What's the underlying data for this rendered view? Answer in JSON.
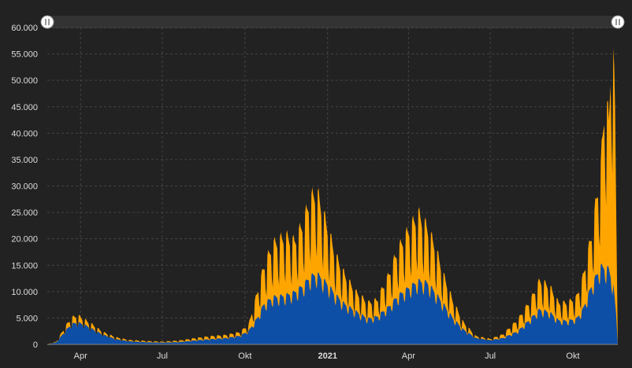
{
  "chart_data": {
    "type": "area",
    "stacked": true,
    "title": "",
    "xlabel": "",
    "ylabel": "",
    "ylim": [
      0,
      60000
    ],
    "y_ticks": [
      "0",
      "5.000",
      "10.000",
      "15.000",
      "20.000",
      "25.000",
      "30.000",
      "35.000",
      "40.000",
      "45.000",
      "50.000",
      "55.000",
      "60.000"
    ],
    "x_ticks": [
      {
        "label": "Apr",
        "date": "2020-04-01"
      },
      {
        "label": "Jul",
        "date": "2020-07-01"
      },
      {
        "label": "Okt",
        "date": "2020-10-01"
      },
      {
        "label": "2021",
        "date": "2021-01-01",
        "bold": true
      },
      {
        "label": "Apr",
        "date": "2021-04-01"
      },
      {
        "label": "Jul",
        "date": "2021-07-01"
      },
      {
        "label": "Okt",
        "date": "2021-10-01"
      }
    ],
    "x_range": [
      "2020-02-24",
      "2021-11-20"
    ],
    "grid": true,
    "legend": "none",
    "navigator_handles": true,
    "colors": {
      "series_bottom": "#0d4ea6",
      "series_top": "#ffa500",
      "background": "#222222",
      "grid": "#444444",
      "navigator": "#333333"
    },
    "series_bottom": [
      [
        "2020-02-24",
        0
      ],
      [
        "2020-03-05",
        400
      ],
      [
        "2020-03-15",
        2500
      ],
      [
        "2020-03-22",
        3800
      ],
      [
        "2020-03-29",
        4100
      ],
      [
        "2020-04-05",
        3700
      ],
      [
        "2020-04-15",
        2800
      ],
      [
        "2020-04-25",
        1900
      ],
      [
        "2020-05-10",
        1000
      ],
      [
        "2020-05-25",
        600
      ],
      [
        "2020-06-15",
        400
      ],
      [
        "2020-07-01",
        350
      ],
      [
        "2020-07-20",
        450
      ],
      [
        "2020-08-10",
        800
      ],
      [
        "2020-08-25",
        1000
      ],
      [
        "2020-09-10",
        1200
      ],
      [
        "2020-09-25",
        1600
      ],
      [
        "2020-10-05",
        2500
      ],
      [
        "2020-10-15",
        5000
      ],
      [
        "2020-10-22",
        7500
      ],
      [
        "2020-11-01",
        8800
      ],
      [
        "2020-11-15",
        9100
      ],
      [
        "2020-11-25",
        9700
      ],
      [
        "2020-12-05",
        11000
      ],
      [
        "2020-12-12",
        12500
      ],
      [
        "2020-12-20",
        13200
      ],
      [
        "2021-01-01",
        11200
      ],
      [
        "2021-01-10",
        9200
      ],
      [
        "2021-01-20",
        7500
      ],
      [
        "2021-02-01",
        6200
      ],
      [
        "2021-02-15",
        4800
      ],
      [
        "2021-02-25",
        5200
      ],
      [
        "2021-03-10",
        7000
      ],
      [
        "2021-03-20",
        9000
      ],
      [
        "2021-04-01",
        10500
      ],
      [
        "2021-04-12",
        11800
      ],
      [
        "2021-04-22",
        11500
      ],
      [
        "2021-05-01",
        9600
      ],
      [
        "2021-05-10",
        7500
      ],
      [
        "2021-05-20",
        5000
      ],
      [
        "2021-06-01",
        2800
      ],
      [
        "2021-06-15",
        1200
      ],
      [
        "2021-07-01",
        800
      ],
      [
        "2021-07-15",
        1200
      ],
      [
        "2021-08-01",
        2500
      ],
      [
        "2021-08-15",
        4800
      ],
      [
        "2021-08-25",
        6500
      ],
      [
        "2021-09-05",
        6000
      ],
      [
        "2021-09-15",
        4500
      ],
      [
        "2021-09-25",
        4400
      ],
      [
        "2021-10-05",
        4800
      ],
      [
        "2021-10-12",
        6500
      ],
      [
        "2021-10-22",
        11000
      ],
      [
        "2021-11-01",
        14500
      ],
      [
        "2021-11-10",
        14000
      ],
      [
        "2021-11-15",
        11000
      ],
      [
        "2021-11-18",
        6000
      ],
      [
        "2021-11-20",
        0
      ]
    ],
    "series_total": [
      [
        "2020-02-24",
        0
      ],
      [
        "2020-03-05",
        500
      ],
      [
        "2020-03-15",
        3200
      ],
      [
        "2020-03-22",
        4800
      ],
      [
        "2020-03-29",
        5200
      ],
      [
        "2020-04-05",
        4500
      ],
      [
        "2020-04-15",
        3500
      ],
      [
        "2020-04-25",
        2300
      ],
      [
        "2020-05-10",
        1300
      ],
      [
        "2020-05-25",
        800
      ],
      [
        "2020-06-15",
        600
      ],
      [
        "2020-07-01",
        500
      ],
      [
        "2020-07-20",
        700
      ],
      [
        "2020-08-10",
        1200
      ],
      [
        "2020-08-25",
        1500
      ],
      [
        "2020-09-10",
        1700
      ],
      [
        "2020-09-25",
        2200
      ],
      [
        "2020-10-05",
        3500
      ],
      [
        "2020-10-15",
        9500
      ],
      [
        "2020-10-22",
        14000
      ],
      [
        "2020-11-01",
        18000
      ],
      [
        "2020-11-15",
        19500
      ],
      [
        "2020-11-25",
        18500
      ],
      [
        "2020-12-05",
        22000
      ],
      [
        "2020-12-12",
        26000
      ],
      [
        "2020-12-20",
        27500
      ],
      [
        "2021-01-01",
        21000
      ],
      [
        "2021-01-10",
        16000
      ],
      [
        "2021-01-20",
        12500
      ],
      [
        "2021-02-01",
        9500
      ],
      [
        "2021-02-15",
        7500
      ],
      [
        "2021-02-25",
        8000
      ],
      [
        "2021-03-10",
        12500
      ],
      [
        "2021-03-20",
        17000
      ],
      [
        "2021-04-01",
        20500
      ],
      [
        "2021-04-12",
        23500
      ],
      [
        "2021-04-22",
        21000
      ],
      [
        "2021-05-01",
        17500
      ],
      [
        "2021-05-10",
        12500
      ],
      [
        "2021-05-20",
        8000
      ],
      [
        "2021-06-01",
        4000
      ],
      [
        "2021-06-15",
        1500
      ],
      [
        "2021-07-01",
        1000
      ],
      [
        "2021-07-15",
        1800
      ],
      [
        "2021-08-01",
        4500
      ],
      [
        "2021-08-15",
        8000
      ],
      [
        "2021-08-25",
        11500
      ],
      [
        "2021-09-05",
        10500
      ],
      [
        "2021-09-15",
        7500
      ],
      [
        "2021-09-25",
        7500
      ],
      [
        "2021-10-05",
        8500
      ],
      [
        "2021-10-12",
        12000
      ],
      [
        "2021-10-22",
        20000
      ],
      [
        "2021-11-01",
        32000
      ],
      [
        "2021-11-06",
        45000
      ],
      [
        "2021-11-10",
        40000
      ],
      [
        "2021-11-13",
        55000
      ],
      [
        "2021-11-15",
        52000
      ],
      [
        "2021-11-17",
        42000
      ],
      [
        "2021-11-20",
        0
      ]
    ]
  }
}
